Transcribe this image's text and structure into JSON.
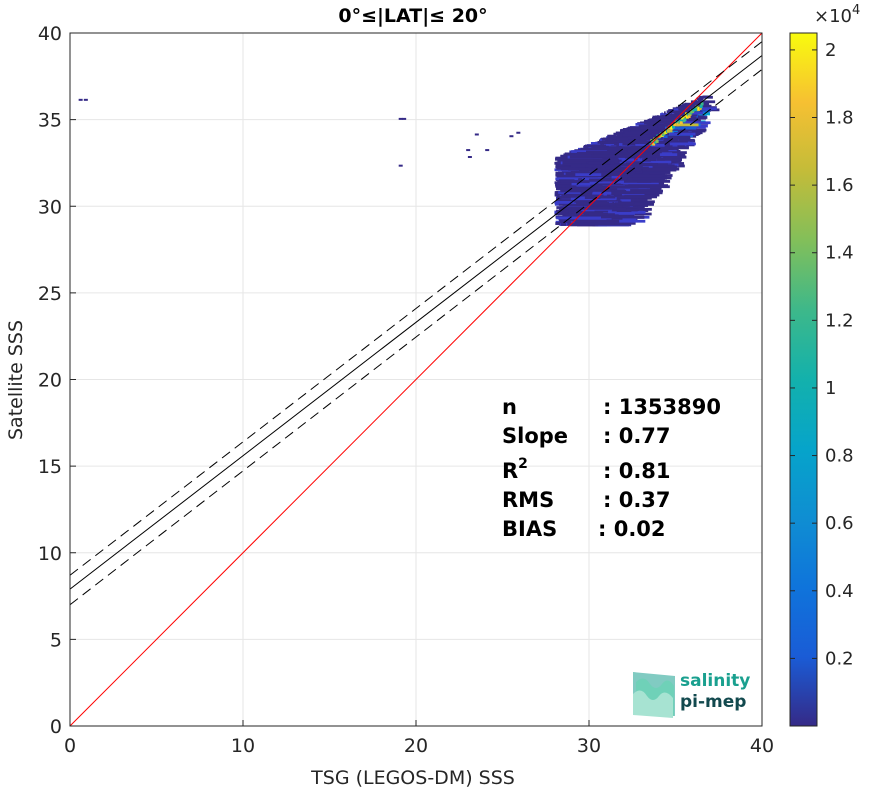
{
  "chart_data": {
    "type": "heatmap",
    "title": "0°≤|LAT|≤ 20°",
    "xlabel": "TSG (LEGOS-DM) SSS",
    "ylabel": "Satellite SSS",
    "xlim": [
      0,
      40
    ],
    "ylim": [
      0,
      40
    ],
    "xticks": [
      "0",
      "10",
      "20",
      "30",
      "40"
    ],
    "yticks": [
      "0",
      "5",
      "10",
      "15",
      "20",
      "25",
      "30",
      "35",
      "40"
    ],
    "grid": true,
    "colormap": "parula",
    "colorbar": {
      "exponent_label": "×10",
      "exponent": "4",
      "range": [
        0,
        2.05
      ],
      "ticks": [
        "0.2",
        "0.4",
        "0.6",
        "0.8",
        "1",
        "1.2",
        "1.4",
        "1.6",
        "1.8",
        "2"
      ]
    },
    "lines": [
      {
        "name": "1:1",
        "color": "#ff0000",
        "x": [
          0,
          40
        ],
        "y": [
          0,
          40
        ]
      },
      {
        "name": "fit",
        "color": "#000000",
        "style": "solid",
        "x": [
          0,
          40
        ],
        "y": [
          7.9,
          38.7
        ]
      },
      {
        "name": "fit+",
        "color": "#000000",
        "style": "dashed",
        "x": [
          0,
          40
        ],
        "y": [
          8.7,
          39.5
        ]
      },
      {
        "name": "fit-",
        "color": "#000000",
        "style": "dashed",
        "x": [
          0,
          40
        ],
        "y": [
          7.0,
          37.9
        ]
      }
    ],
    "density_cluster": {
      "x_range": [
        28,
        37
      ],
      "y_range": [
        29,
        37
      ],
      "peak": [
        35,
        35.5
      ]
    },
    "stats": [
      {
        "label": "n",
        "value": ": 1353890"
      },
      {
        "label": "Slope",
        "value": ": 0.77"
      },
      {
        "label": "R",
        "sup": "2",
        "value": ": 0.81"
      },
      {
        "label": "RMS",
        "value": ": 0.37"
      },
      {
        "label": "BIAS",
        "value": ": 0.02"
      }
    ]
  },
  "logo": {
    "line1": "salinity",
    "line2": "pi-mep"
  },
  "colors": {
    "identity": "#ff0000",
    "fit": "#000000",
    "logo_top": "#1aa08f",
    "logo_bottom": "#12494e"
  }
}
